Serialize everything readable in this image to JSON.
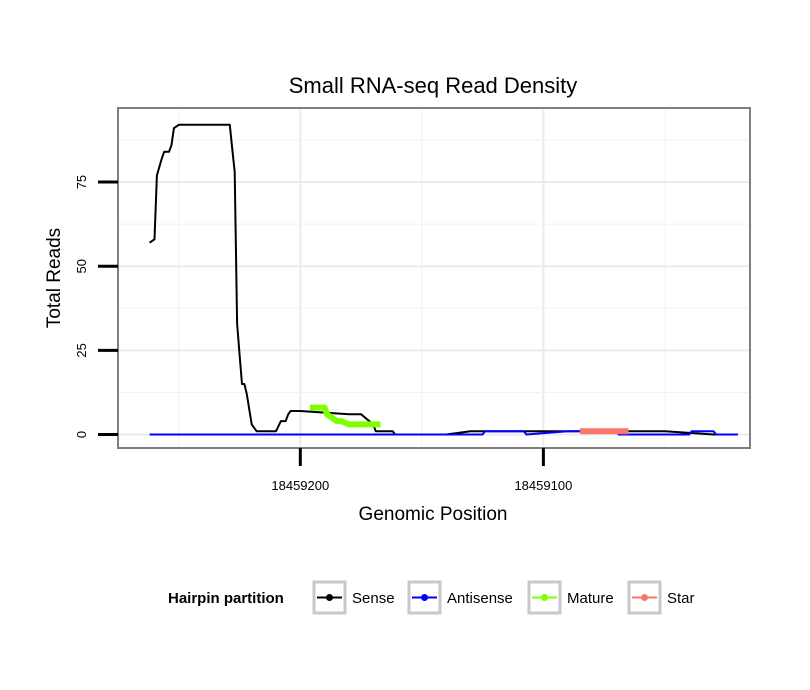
{
  "chart_data": {
    "type": "line",
    "title": "Small RNA-seq Read Density",
    "xlabel": "Genomic Position",
    "ylabel": "Total Reads",
    "x_reversed": true,
    "xlim": [
      18459275,
      18459015
    ],
    "ylim": [
      -4,
      97
    ],
    "x_ticks": [
      18459200,
      18459100
    ],
    "x_tick_labels": [
      "18459200",
      "18459100"
    ],
    "y_ticks": [
      0,
      25,
      50,
      75
    ],
    "y_tick_labels": [
      "0",
      "25",
      "50",
      "75"
    ],
    "grid": true,
    "legend": {
      "title": "Hairpin partition",
      "position": "bottom",
      "entries": [
        "Sense",
        "Antisense",
        "Mature",
        "Star"
      ]
    },
    "series": [
      {
        "name": "Sense",
        "color": "#000000",
        "width": 2,
        "x": [
          18459262,
          18459260,
          18459259,
          18459257,
          18459256,
          18459254,
          18459253,
          18459252,
          18459250,
          18459248,
          18459246,
          18459244,
          18459242,
          18459240,
          18459239,
          18459237,
          18459236,
          18459235,
          18459234,
          18459233,
          18459232,
          18459231,
          18459230,
          18459229,
          18459228,
          18459227,
          18459226,
          18459225,
          18459224,
          18459223,
          18459222,
          18459220,
          18459218,
          18459216,
          18459214,
          18459213,
          18459212,
          18459211,
          18459210,
          18459208,
          18459206,
          18459205,
          18459204,
          18459200,
          18459180,
          18459175,
          18459170,
          18459169,
          18459165,
          18459162,
          18459161,
          18459150,
          18459140,
          18459130,
          18459120,
          18459110,
          18459100,
          18459090,
          18459080,
          18459070,
          18459050,
          18459030,
          18459020
        ],
        "y": [
          57,
          58,
          77,
          82,
          84,
          84,
          86,
          91,
          92,
          92,
          92,
          92,
          92,
          92,
          92,
          92,
          92,
          92,
          92,
          92,
          92,
          92,
          92,
          92,
          85,
          78,
          33,
          24,
          15,
          15,
          12,
          3,
          1,
          1,
          1,
          1,
          1,
          1,
          1,
          4,
          4,
          6,
          7,
          7,
          6,
          6,
          3,
          1,
          1,
          1,
          0,
          0,
          0,
          1,
          1,
          1,
          1,
          1,
          1,
          1,
          1,
          0,
          0
        ]
      },
      {
        "name": "Antisense",
        "color": "#0000ff",
        "width": 2,
        "x": [
          18459262,
          18459160,
          18459125,
          18459124,
          18459108,
          18459107,
          18459090,
          18459089,
          18459070,
          18459069,
          18459040,
          18459039,
          18459030,
          18459029,
          18459020
        ],
        "y": [
          0,
          0,
          0,
          1,
          1,
          0,
          1,
          1,
          1,
          0,
          0,
          1,
          1,
          0,
          0
        ]
      },
      {
        "name": "Mature",
        "color": "#7fff00",
        "width": 6,
        "x": [
          18459196,
          18459190,
          18459189,
          18459185,
          18459183,
          18459180,
          18459167
        ],
        "y": [
          8,
          8,
          6,
          4,
          4,
          3,
          3
        ]
      },
      {
        "name": "Star",
        "color": "#f8766d",
        "width": 6,
        "x": [
          18459085,
          18459065
        ],
        "y": [
          1,
          1
        ]
      }
    ]
  }
}
